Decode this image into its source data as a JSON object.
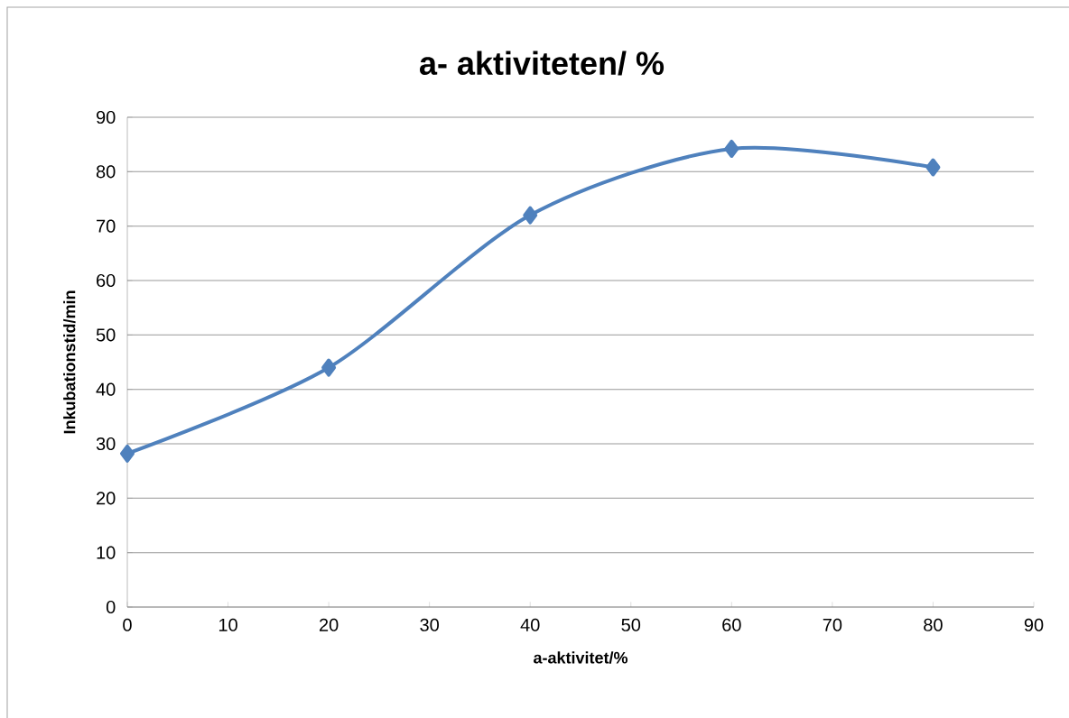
{
  "chart_data": {
    "type": "line",
    "title": "a- aktiviteten/ %",
    "xlabel": "a-aktivitet/%",
    "ylabel": "Inkubationstid/min",
    "x": [
      0,
      20,
      40,
      60,
      80
    ],
    "series": [
      {
        "color": "#4f81bd",
        "values": [
          28.2,
          44,
          72,
          84.2,
          80.8
        ]
      }
    ],
    "xlim": [
      0,
      90
    ],
    "xticks": [
      0,
      10,
      20,
      30,
      40,
      50,
      60,
      70,
      80,
      90
    ],
    "ylim": [
      0,
      90
    ],
    "yticks": [
      0,
      10,
      20,
      30,
      40,
      50,
      60,
      70,
      80,
      90
    ],
    "grid": "y",
    "marker": "diamond",
    "line_style": "solid"
  }
}
